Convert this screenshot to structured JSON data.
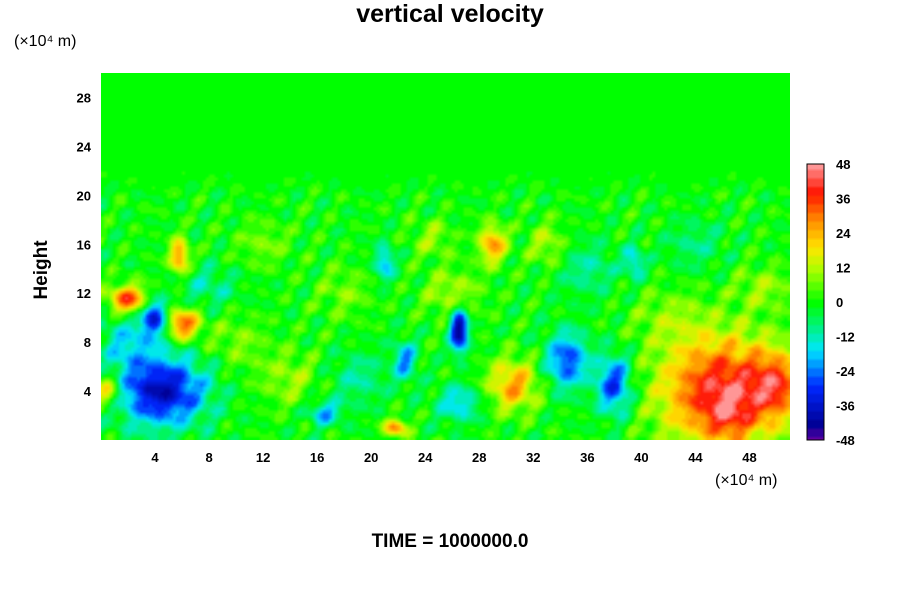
{
  "chart_data": {
    "type": "heatmap",
    "title": "vertical velocity",
    "xlabel": "",
    "ylabel": "Height",
    "x_unit": "(×10⁴ m)",
    "y_unit": "(×10⁴ m)",
    "xlim": [
      0,
      51
    ],
    "ylim": [
      0,
      30
    ],
    "x_ticks": [
      4,
      8,
      12,
      16,
      20,
      24,
      28,
      32,
      36,
      40,
      44,
      48
    ],
    "y_ticks": [
      4,
      8,
      12,
      16,
      20,
      24,
      28
    ],
    "colorbar": {
      "range": [
        -48,
        48
      ],
      "ticks": [
        48,
        36,
        24,
        12,
        0,
        -12,
        -24,
        -36,
        -48
      ]
    },
    "features": [
      {
        "x": 46,
        "y": 4,
        "sx": 3.2,
        "sy": 3.2,
        "value": 42
      },
      {
        "x": 46.5,
        "y": 2,
        "sx": 1.0,
        "sy": 1.3,
        "value": 12
      },
      {
        "x": 4.5,
        "y": 4,
        "sx": 2.3,
        "sy": 2.0,
        "value": -38
      },
      {
        "x": 38,
        "y": 4.5,
        "sx": 0.9,
        "sy": 1.7,
        "value": -30
      },
      {
        "x": 34.5,
        "y": 6.5,
        "sx": 1.1,
        "sy": 1.6,
        "value": -28
      },
      {
        "x": 30.5,
        "y": 4.5,
        "sx": 1.3,
        "sy": 1.5,
        "value": 26
      },
      {
        "x": 26.5,
        "y": 9,
        "sx": 0.45,
        "sy": 1.2,
        "value": -46
      },
      {
        "x": 6,
        "y": 9.5,
        "sx": 0.9,
        "sy": 0.9,
        "value": 34
      },
      {
        "x": 2,
        "y": 11.5,
        "sx": 1.0,
        "sy": 0.8,
        "value": 36
      },
      {
        "x": 4,
        "y": 10,
        "sx": 0.7,
        "sy": 1.0,
        "value": -34
      },
      {
        "x": 5.8,
        "y": 15,
        "sx": 0.5,
        "sy": 1.0,
        "value": 30
      },
      {
        "x": 29,
        "y": 16,
        "sx": 0.7,
        "sy": 1.1,
        "value": 28
      },
      {
        "x": 21.8,
        "y": 1,
        "sx": 0.6,
        "sy": 0.5,
        "value": 30
      },
      {
        "x": 16.5,
        "y": 2.2,
        "sx": 0.9,
        "sy": 0.7,
        "value": -20
      },
      {
        "x": 26.5,
        "y": 3,
        "sx": 1.1,
        "sy": 1.0,
        "value": -18
      },
      {
        "x": 22.5,
        "y": 6.5,
        "sx": 0.6,
        "sy": 1.1,
        "value": -22
      },
      {
        "x": 21,
        "y": 14.5,
        "sx": 0.5,
        "sy": 1.0,
        "value": -20
      },
      {
        "x": 39.5,
        "y": 14.5,
        "sx": 0.5,
        "sy": 0.9,
        "value": -18
      },
      {
        "x": 0.5,
        "y": 4,
        "sx": 0.7,
        "sy": 1.0,
        "value": 22
      },
      {
        "x": 50,
        "y": 4.5,
        "sx": 1.3,
        "sy": 1.8,
        "value": 24
      },
      {
        "x": 33,
        "y": 16,
        "sx": 1.0,
        "sy": 1.3,
        "value": 12
      },
      {
        "x": 12,
        "y": 16,
        "sx": 1.4,
        "sy": 1.3,
        "value": 8
      },
      {
        "x": 18,
        "y": 12,
        "sx": 1.4,
        "sy": 1.5,
        "value": 8
      },
      {
        "x": 24.5,
        "y": 16.5,
        "sx": 1.1,
        "sy": 1.1,
        "value": 10
      },
      {
        "x": 44,
        "y": 16,
        "sx": 1.5,
        "sy": 1.4,
        "value": -8
      },
      {
        "x": 10,
        "y": 8,
        "sx": 1.6,
        "sy": 1.6,
        "value": 8
      },
      {
        "x": 14,
        "y": 5,
        "sx": 1.6,
        "sy": 1.7,
        "value": 10
      },
      {
        "x": 2,
        "y": 8,
        "sx": 1.5,
        "sy": 1.6,
        "value": -14
      },
      {
        "x": 42,
        "y": 10,
        "sx": 2.0,
        "sy": 1.6,
        "value": 8
      },
      {
        "x": 36,
        "y": 14,
        "sx": 1.5,
        "sy": 1.5,
        "value": -10
      },
      {
        "x": 8,
        "y": 12.5,
        "sx": 1.5,
        "sy": 1.2,
        "value": -10
      },
      {
        "x": 49,
        "y": 12.5,
        "sx": 1.5,
        "sy": 1.2,
        "value": 10
      },
      {
        "x": 19,
        "y": 5,
        "sx": 1.5,
        "sy": 1.5,
        "value": -10
      },
      {
        "x": 26,
        "y": 12,
        "sx": 1.5,
        "sy": 1.4,
        "value": 12
      }
    ]
  },
  "footer": {
    "time_label": "TIME = 1000000.0"
  },
  "colors": {
    "background": "#ffffff",
    "field_zero": "#00ff00"
  }
}
